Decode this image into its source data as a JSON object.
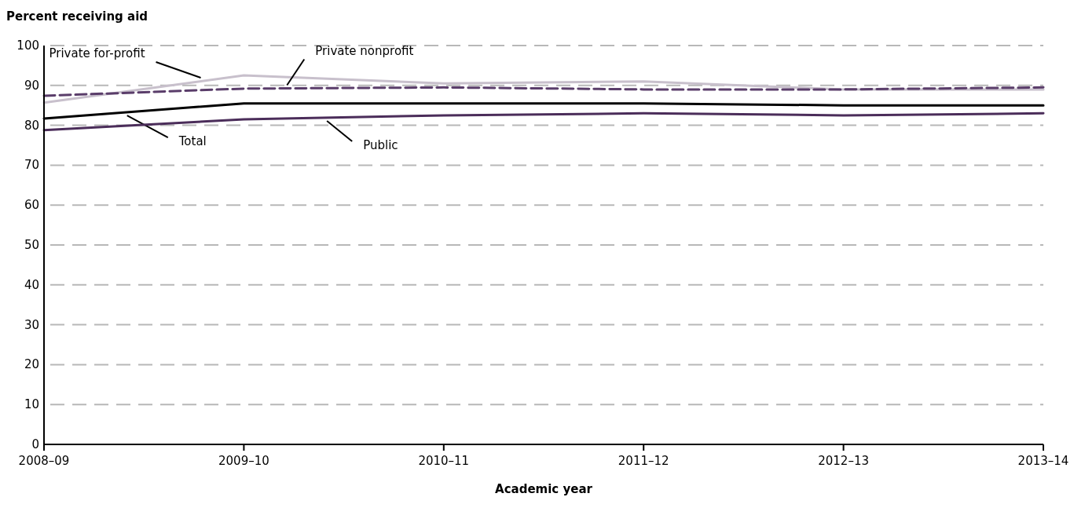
{
  "chart_data": {
    "type": "line",
    "ylabel": "Percent receiving aid",
    "xlabel": "Academic year",
    "categories": [
      "2008–09",
      "2009–10",
      "2010–11",
      "2011–12",
      "2012–13",
      "2013–14"
    ],
    "ylim": [
      0,
      100
    ],
    "yticks": [
      0,
      10,
      20,
      30,
      40,
      50,
      60,
      70,
      80,
      90,
      100
    ],
    "grid": "y",
    "series": [
      {
        "name": "Private for-profit",
        "color": "#c8c0cc",
        "values": [
          85.7,
          92.5,
          90.5,
          91,
          89,
          89
        ],
        "line_style": "solid"
      },
      {
        "name": "Private nonprofit",
        "color": "#5a3d6a",
        "values": [
          87.4,
          89.2,
          89.5,
          89,
          89,
          89.5
        ],
        "line_style": "dashed"
      },
      {
        "name": "Total",
        "color": "#000000",
        "values": [
          81.7,
          85.5,
          85.5,
          85.5,
          85,
          85
        ],
        "line_style": "solid"
      },
      {
        "name": "Public",
        "color": "#4b2d5a",
        "values": [
          78.8,
          81.5,
          82.5,
          83,
          82.5,
          83
        ],
        "line_style": "solid"
      }
    ]
  }
}
